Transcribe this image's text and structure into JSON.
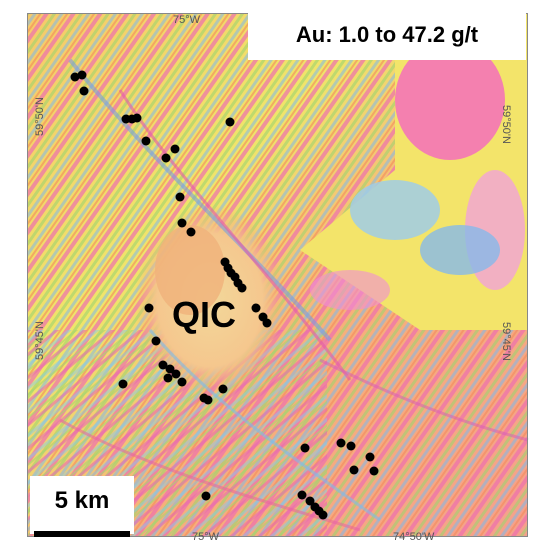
{
  "title": "Au: 1.0 to 47.2 g/t",
  "map_label": "QIC",
  "scale_label": "5 km",
  "coordinates": {
    "lon_top": "75°W",
    "lon_bottom_left": "75°W",
    "lon_bottom_right": "74°50'W",
    "lat_left_top": "59°50'N",
    "lat_left_bottom": "59°45'N",
    "lat_right_top": "59°50'N",
    "lat_right_bottom": "59°45'N"
  },
  "legend_colors": {
    "sample_point": "#000000",
    "high_magnetic": "#ff69b4",
    "mid_magnetic": "#f4e04d",
    "low_magnetic": "#6fa8dc"
  }
}
